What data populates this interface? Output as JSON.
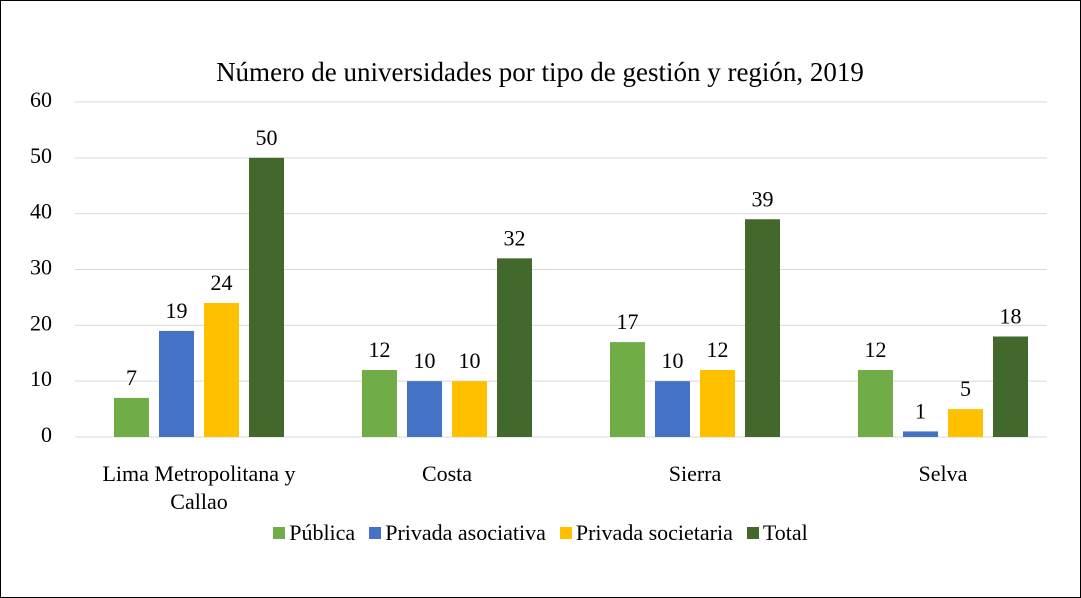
{
  "chart_data": {
    "type": "bar",
    "title": "Número de universidades por tipo de gestión y región, 2019",
    "categories": [
      "Lima Metropolitana y Callao",
      "Costa",
      "Sierra",
      "Selva"
    ],
    "series": [
      {
        "name": "Pública",
        "color": "#70ad47",
        "values": [
          7,
          12,
          17,
          12
        ]
      },
      {
        "name": "Privada asociativa",
        "color": "#4472c4",
        "values": [
          19,
          10,
          10,
          1
        ]
      },
      {
        "name": "Privada societaria",
        "color": "#ffc000",
        "values": [
          24,
          10,
          12,
          5
        ]
      },
      {
        "name": "Total",
        "color": "#43682b",
        "values": [
          50,
          32,
          39,
          18
        ]
      }
    ],
    "ylim": [
      0,
      60
    ],
    "yticks": [
      0,
      10,
      20,
      30,
      40,
      50,
      60
    ],
    "grid": true,
    "legend": "bottom"
  }
}
